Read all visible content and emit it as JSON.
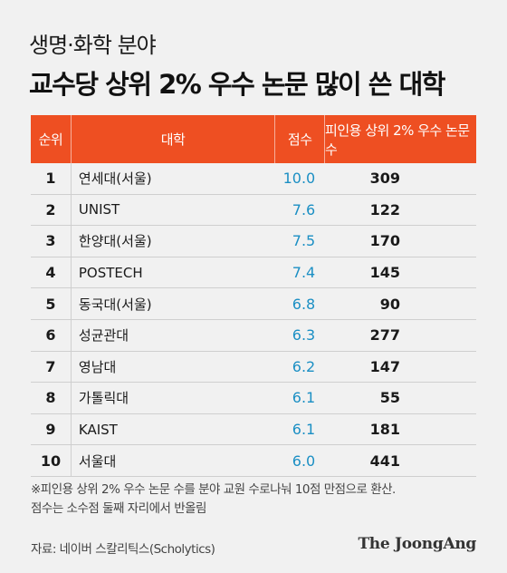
{
  "header": {
    "subtitle": "생명·화학 분야",
    "title": "교수당 상위 2% 우수 논문 많이 쓴 대학"
  },
  "table": {
    "columns": [
      "순위",
      "대학",
      "점수",
      "피인용 상위 2% 우수 논문 수"
    ],
    "rows": [
      {
        "rank": "1",
        "university": "연세대(서울)",
        "score": "10.0",
        "papers": "309"
      },
      {
        "rank": "2",
        "university": "UNIST",
        "score": "7.6",
        "papers": "122"
      },
      {
        "rank": "3",
        "university": "한양대(서울)",
        "score": "7.5",
        "papers": "170"
      },
      {
        "rank": "4",
        "university": "POSTECH",
        "score": "7.4",
        "papers": "145"
      },
      {
        "rank": "5",
        "university": "동국대(서울)",
        "score": "6.8",
        "papers": "90"
      },
      {
        "rank": "6",
        "university": "성균관대",
        "score": "6.3",
        "papers": "277"
      },
      {
        "rank": "7",
        "university": "영남대",
        "score": "6.2",
        "papers": "147"
      },
      {
        "rank": "8",
        "university": "가톨릭대",
        "score": "6.1",
        "papers": "55"
      },
      {
        "rank": "9",
        "university": "KAIST",
        "score": "6.1",
        "papers": "181"
      },
      {
        "rank": "10",
        "university": "서울대",
        "score": "6.0",
        "papers": "441"
      }
    ]
  },
  "notes": {
    "line1": "※피인용 상위 2% 우수 논문 수를 분야 교원 수로나눠 10점 만점으로 환산.",
    "line2": "점수는 소수점 둘째 자리에서 반올림"
  },
  "footer": {
    "source": "자료: 네이버 스칼리틱스(Scholytics)",
    "logo": "The JoongAng"
  },
  "colors": {
    "header_bg": "#ee4f22",
    "score_text": "#1b8fc4",
    "page_bg": "#f1f1f1"
  }
}
